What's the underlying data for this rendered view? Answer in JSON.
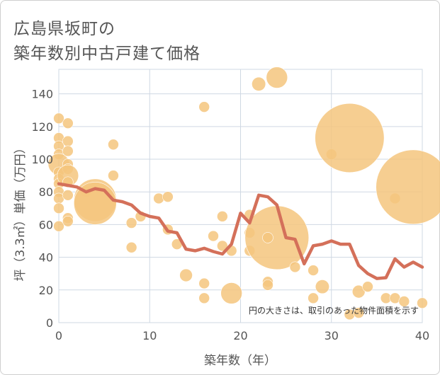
{
  "chart_data": {
    "type": "scatter",
    "title_line1": "広島県坂町の",
    "title_line2": "築年数別中古戸建て価格",
    "xlabel": "築年数（年）",
    "ylabel": "坪（3.3㎡）単価（万円）",
    "xlim": [
      0,
      40
    ],
    "ylim": [
      0,
      155
    ],
    "xticks": [
      0,
      10,
      20,
      30,
      40
    ],
    "yticks": [
      0,
      20,
      40,
      60,
      80,
      100,
      120,
      140
    ],
    "note": "円の大きさは、取引のあった物件面積を示す",
    "colors": {
      "bubble": "#f5c57e",
      "line": "#d4705a",
      "grid": "#cfd8e3"
    },
    "bubbles": [
      {
        "x": 0,
        "y": 125,
        "s": 1
      },
      {
        "x": 0,
        "y": 113,
        "s": 1
      },
      {
        "x": 0,
        "y": 108,
        "s": 1
      },
      {
        "x": 0,
        "y": 103,
        "s": 1
      },
      {
        "x": 0,
        "y": 97,
        "s": 2
      },
      {
        "x": 0,
        "y": 92,
        "s": 1
      },
      {
        "x": 0,
        "y": 88,
        "s": 1
      },
      {
        "x": 0,
        "y": 85,
        "s": 1
      },
      {
        "x": 0,
        "y": 80,
        "s": 1
      },
      {
        "x": 0,
        "y": 76,
        "s": 1
      },
      {
        "x": 0,
        "y": 70,
        "s": 1
      },
      {
        "x": 0,
        "y": 59,
        "s": 1
      },
      {
        "x": 1,
        "y": 122,
        "s": 1
      },
      {
        "x": 1,
        "y": 111,
        "s": 1
      },
      {
        "x": 1,
        "y": 105,
        "s": 1
      },
      {
        "x": 1,
        "y": 97,
        "s": 1
      },
      {
        "x": 1,
        "y": 94,
        "s": 1
      },
      {
        "x": 1,
        "y": 90,
        "s": 2
      },
      {
        "x": 1,
        "y": 86,
        "s": 1
      },
      {
        "x": 1,
        "y": 78,
        "s": 1
      },
      {
        "x": 1,
        "y": 64,
        "s": 1
      },
      {
        "x": 1,
        "y": 62,
        "s": 1
      },
      {
        "x": 3,
        "y": 80,
        "s": 1
      },
      {
        "x": 4,
        "y": 75,
        "s": 4
      },
      {
        "x": 4,
        "y": 73,
        "s": 4
      },
      {
        "x": 6,
        "y": 109,
        "s": 1
      },
      {
        "x": 6,
        "y": 90,
        "s": 1
      },
      {
        "x": 8,
        "y": 61,
        "s": 1
      },
      {
        "x": 8,
        "y": 46,
        "s": 1
      },
      {
        "x": 9,
        "y": 65,
        "s": 1
      },
      {
        "x": 11,
        "y": 76,
        "s": 1
      },
      {
        "x": 12,
        "y": 77,
        "s": 1
      },
      {
        "x": 12,
        "y": 57,
        "s": 1
      },
      {
        "x": 13,
        "y": 48,
        "s": 1
      },
      {
        "x": 14,
        "y": 29,
        "s": 1.2
      },
      {
        "x": 16,
        "y": 132,
        "s": 1
      },
      {
        "x": 16,
        "y": 24,
        "s": 1
      },
      {
        "x": 16,
        "y": 15,
        "s": 1
      },
      {
        "x": 17,
        "y": 53,
        "s": 1
      },
      {
        "x": 18,
        "y": 65,
        "s": 1
      },
      {
        "x": 18,
        "y": 47,
        "s": 1
      },
      {
        "x": 19,
        "y": 44,
        "s": 1
      },
      {
        "x": 19,
        "y": 18,
        "s": 2
      },
      {
        "x": 21,
        "y": 66,
        "s": 1
      },
      {
        "x": 21,
        "y": 55,
        "s": 1
      },
      {
        "x": 21,
        "y": 44,
        "s": 1
      },
      {
        "x": 22,
        "y": 146,
        "s": 1.3
      },
      {
        "x": 24,
        "y": 150,
        "s": 2
      },
      {
        "x": 24,
        "y": 52,
        "s": 6
      },
      {
        "x": 23,
        "y": 52,
        "s": 1
      },
      {
        "x": 23,
        "y": 25,
        "s": 1
      },
      {
        "x": 23,
        "y": 23,
        "s": 1
      },
      {
        "x": 26,
        "y": 34,
        "s": 1
      },
      {
        "x": 28,
        "y": 32,
        "s": 1
      },
      {
        "x": 28,
        "y": 15,
        "s": 1
      },
      {
        "x": 29,
        "y": 22,
        "s": 1.3
      },
      {
        "x": 30,
        "y": 103,
        "s": 1
      },
      {
        "x": 32,
        "y": 113,
        "s": 6.5
      },
      {
        "x": 32,
        "y": 5,
        "s": 1
      },
      {
        "x": 33,
        "y": 19,
        "s": 1.2
      },
      {
        "x": 33,
        "y": 6,
        "s": 1
      },
      {
        "x": 34,
        "y": 22,
        "s": 1
      },
      {
        "x": 36,
        "y": 15,
        "s": 1
      },
      {
        "x": 37,
        "y": 76,
        "s": 1
      },
      {
        "x": 37,
        "y": 15,
        "s": 1
      },
      {
        "x": 38,
        "y": 13,
        "s": 1
      },
      {
        "x": 39,
        "y": 83,
        "s": 7
      },
      {
        "x": 40,
        "y": 12,
        "s": 1
      }
    ],
    "line": [
      [
        0,
        85
      ],
      [
        1,
        84
      ],
      [
        2,
        83
      ],
      [
        3,
        80
      ],
      [
        4,
        82
      ],
      [
        5,
        81
      ],
      [
        6,
        75
      ],
      [
        7,
        74
      ],
      [
        8,
        72
      ],
      [
        9,
        67
      ],
      [
        10,
        65
      ],
      [
        11,
        64
      ],
      [
        12,
        56
      ],
      [
        13,
        55
      ],
      [
        14,
        45
      ],
      [
        15,
        44
      ],
      [
        16,
        45.5
      ],
      [
        17,
        43.5
      ],
      [
        18,
        42
      ],
      [
        19,
        48
      ],
      [
        20,
        67
      ],
      [
        21,
        61
      ],
      [
        22,
        78
      ],
      [
        23,
        77
      ],
      [
        24,
        72
      ],
      [
        25,
        52
      ],
      [
        26,
        51
      ],
      [
        27,
        36
      ],
      [
        28,
        47
      ],
      [
        29,
        48
      ],
      [
        30,
        50
      ],
      [
        31,
        48
      ],
      [
        32,
        48
      ],
      [
        33,
        35
      ],
      [
        34,
        30
      ],
      [
        35,
        27
      ],
      [
        36,
        27.5
      ],
      [
        37,
        39
      ],
      [
        38,
        34
      ],
      [
        39,
        37
      ],
      [
        40,
        34
      ]
    ]
  }
}
